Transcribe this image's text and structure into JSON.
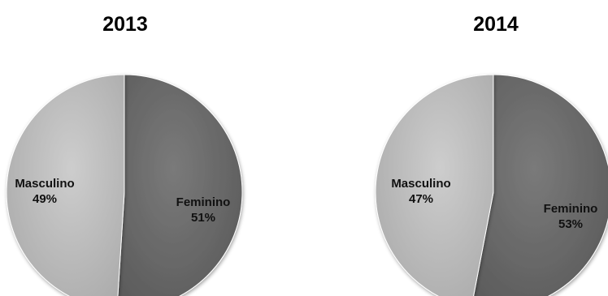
{
  "chart_data": [
    {
      "type": "pie",
      "title": "2013",
      "slices": [
        {
          "label": "Feminino",
          "value": 51,
          "value_label": "51%",
          "color": "#6b6b6b"
        },
        {
          "label": "Masculino",
          "value": 49,
          "value_label": "49%",
          "color": "#bdbdbd"
        }
      ]
    },
    {
      "type": "pie",
      "title": "2014",
      "slices": [
        {
          "label": "Feminino",
          "value": 53,
          "value_label": "53%",
          "color": "#6b6b6b"
        },
        {
          "label": "Masculino",
          "value": 47,
          "value_label": "47%",
          "color": "#bdbdbd"
        }
      ]
    }
  ]
}
